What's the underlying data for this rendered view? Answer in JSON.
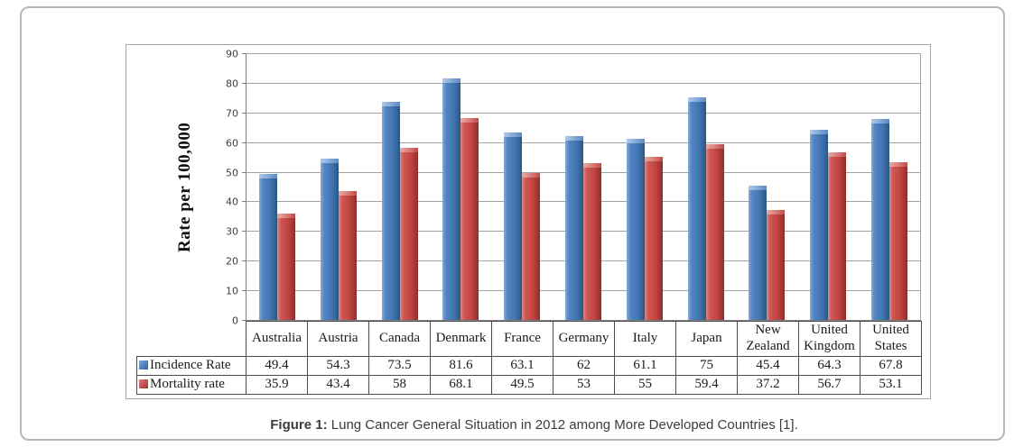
{
  "figure": {
    "caption_prefix": "Figure 1:",
    "caption_text": " Lung Cancer General Situation in 2012 among More Developed Countries [1]."
  },
  "chart_data": {
    "type": "bar",
    "title": "",
    "xlabel": "",
    "ylabel": "Rate per 100,000",
    "ylim": [
      0,
      90
    ],
    "ytick_step": 10,
    "grid": true,
    "legend_position": "table-row-labels",
    "categories": [
      "Australia",
      "Austria",
      "Canada",
      "Denmark",
      "France",
      "Germany",
      "Italy",
      "Japan",
      "New Zealand",
      "United Kingdom",
      "United States"
    ],
    "series": [
      {
        "name": "Incidence Rate",
        "color": "#4f81bd",
        "values": [
          49.4,
          54.3,
          73.5,
          81.6,
          63.1,
          62,
          61.1,
          75,
          45.4,
          64.3,
          67.8
        ]
      },
      {
        "name": "Mortality rate",
        "color": "#c0504d",
        "values": [
          35.9,
          43.4,
          58,
          68.1,
          49.5,
          53,
          55,
          59.4,
          37.2,
          56.7,
          53.1
        ]
      }
    ],
    "colors": {
      "incidence_bar": "#4f81bd",
      "mortality_bar": "#c0504d",
      "gridline": "#a3a3a3",
      "axis": "#808080",
      "table_border": "#4d4d4d",
      "frame_border": "#b7b7b7"
    }
  }
}
